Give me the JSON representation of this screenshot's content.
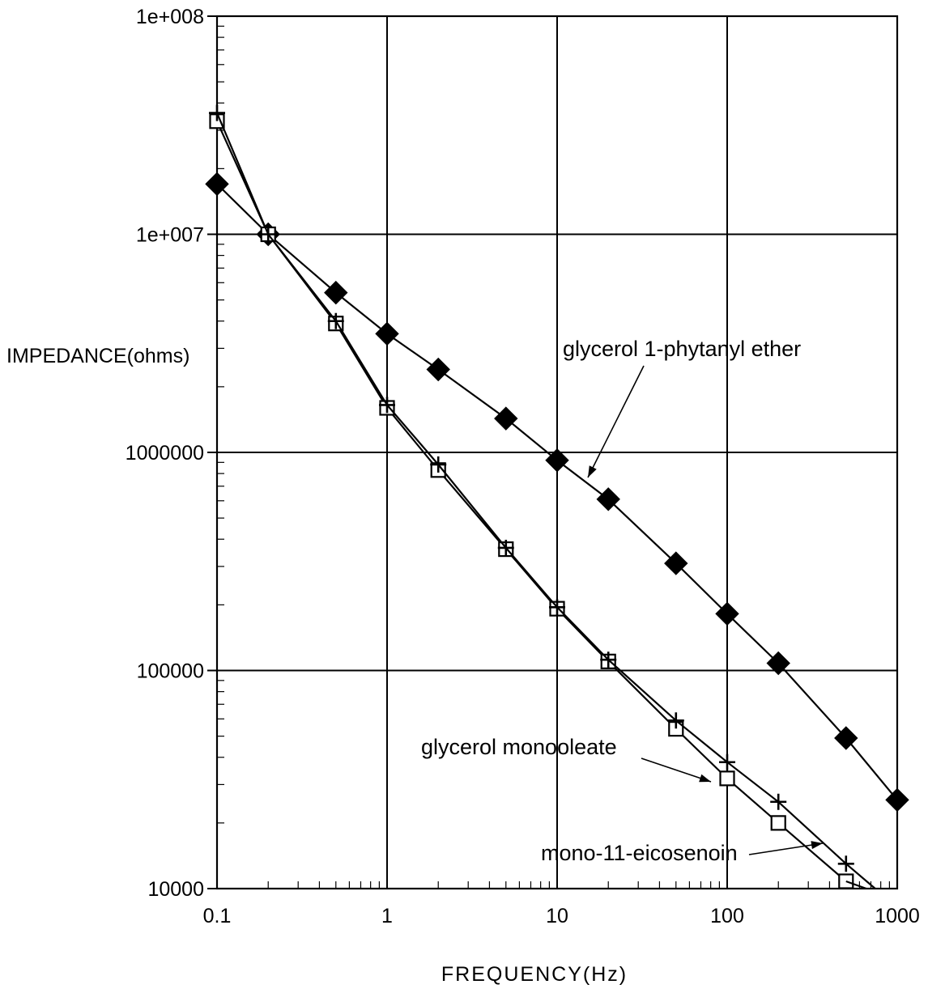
{
  "chart_data": {
    "type": "line",
    "xlabel": "FREQUENCY(Hz)",
    "ylabel": "IMPEDANCE(ohms)",
    "xscale": "log",
    "yscale": "log",
    "xlim": [
      0.1,
      1000
    ],
    "ylim": [
      10000,
      100000000
    ],
    "grid": true,
    "x_ticks": [
      "0.1",
      "1",
      "10",
      "100",
      "1000"
    ],
    "y_ticks": [
      "10000",
      "100000",
      "1000000",
      "1e+007",
      "1e+008"
    ],
    "series": [
      {
        "name": "glycerol 1-phytanyl ether",
        "marker": "filled-diamond",
        "x": [
          0.1,
          0.2,
          0.5,
          1,
          2,
          5,
          10,
          20,
          50,
          100,
          200,
          500,
          1000
        ],
        "y": [
          17000000,
          10000000,
          5400000,
          3500000,
          2400000,
          1430000,
          920000,
          610000,
          310000,
          182000,
          108000,
          49000,
          25500
        ]
      },
      {
        "name": "glycerol monooleate",
        "marker": "open-square",
        "x": [
          0.1,
          0.2,
          0.5,
          1,
          2,
          5,
          10,
          20,
          50,
          100,
          200,
          500
        ],
        "y": [
          33000000,
          10000000,
          3900000,
          1600000,
          830000,
          360000,
          192000,
          110000,
          54000,
          32000,
          20000,
          10800
        ]
      },
      {
        "name": "mono-11-eicosenoin",
        "marker": "plus",
        "x": [
          0.1,
          0.2,
          0.5,
          1,
          2,
          5,
          10,
          20,
          50,
          100,
          200,
          500
        ],
        "y": [
          36000000,
          10000000,
          4000000,
          1650000,
          880000,
          365000,
          195000,
          112000,
          59000,
          38000,
          25000,
          13000
        ]
      }
    ],
    "annotations": [
      {
        "text": "glycerol 1-phytanyl ether",
        "series": 0
      },
      {
        "text": "glycerol monooleate",
        "series": 1
      },
      {
        "text": "mono-11-eicosenoin",
        "series": 2
      }
    ]
  }
}
